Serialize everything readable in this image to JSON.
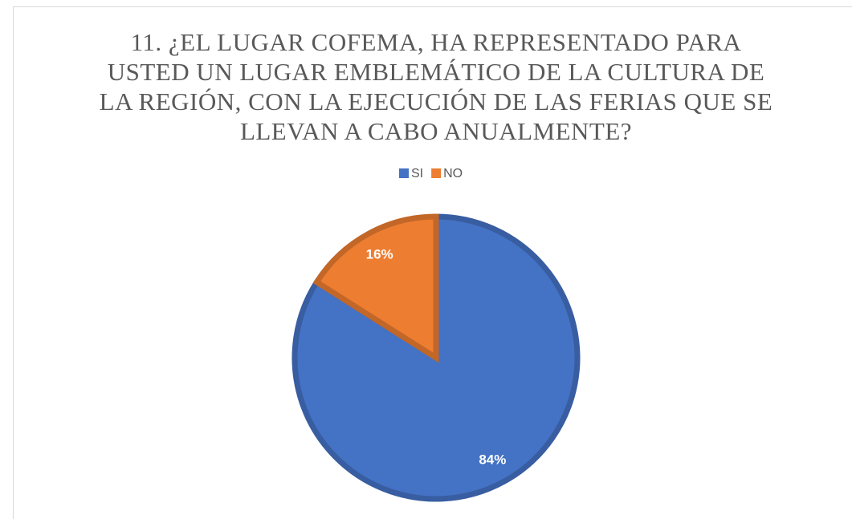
{
  "chart_data": {
    "type": "pie",
    "title": "11. ¿EL LUGAR COFEMA, HA REPRESENTADO PARA USTED UN LUGAR EMBLEMÁTICO DE LA CULTURA DE LA REGIÓN, CON LA EJECUCIÓN DE LAS FERIAS QUE SE LLEVAN A CABO ANUALMENTE?",
    "categories": [
      "SI",
      "NO"
    ],
    "values": [
      84,
      16
    ],
    "value_labels": [
      "84%",
      "16%"
    ],
    "colors": [
      "#4472c4",
      "#ed7d31"
    ],
    "legend": "top"
  }
}
